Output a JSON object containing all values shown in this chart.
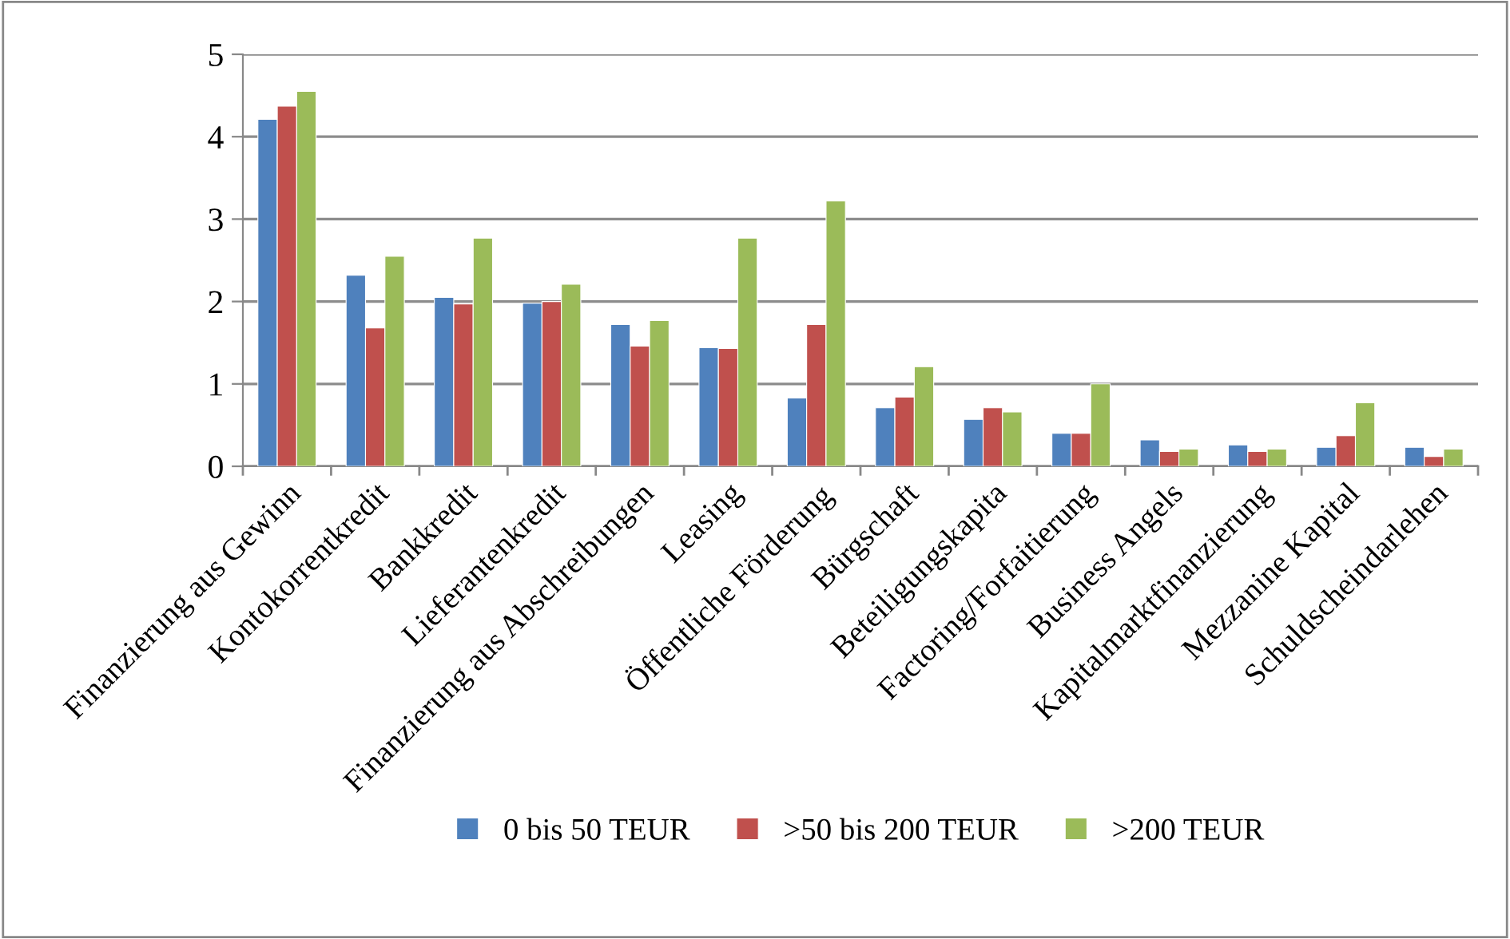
{
  "chart_data": {
    "type": "bar",
    "categories": [
      "Finanzierung aus Gewinn",
      "Kontokorrentkredit",
      "Bankkredit",
      "Lieferantenkredit",
      "Finanzierung aus Abschreibungen",
      "Leasing",
      "Öffentliche Förderung",
      "Bürgschaft",
      "Beteiligungskapita",
      "Factoring/Forfaitierung",
      "Business Angels",
      "Kapitalmarktfinanzierung",
      "Mezzanine Kapital",
      "Schuldscheindarlehen"
    ],
    "series": [
      {
        "name": "0 bis 50 TEUR",
        "color": "#4f81bd",
        "values": [
          4.21,
          2.32,
          2.05,
          1.98,
          1.72,
          1.44,
          0.83,
          0.71,
          0.57,
          0.4,
          0.32,
          0.26,
          0.23,
          0.23
        ]
      },
      {
        "name": ">50 bis 200 TEUR",
        "color": "#c0504d",
        "values": [
          4.37,
          1.68,
          1.97,
          2.0,
          1.46,
          1.43,
          1.72,
          0.84,
          0.71,
          0.4,
          0.18,
          0.18,
          0.37,
          0.12
        ]
      },
      {
        "name": ">200 TEUR",
        "color": "#9bbb59",
        "values": [
          4.55,
          2.55,
          2.77,
          2.21,
          1.77,
          2.77,
          3.22,
          1.21,
          0.66,
          1.0,
          0.21,
          0.21,
          0.77,
          0.21
        ]
      }
    ],
    "ylim": [
      0,
      5
    ],
    "yticks": [
      0,
      1,
      2,
      3,
      4,
      5
    ],
    "grid": "y",
    "legend": "bottom"
  }
}
